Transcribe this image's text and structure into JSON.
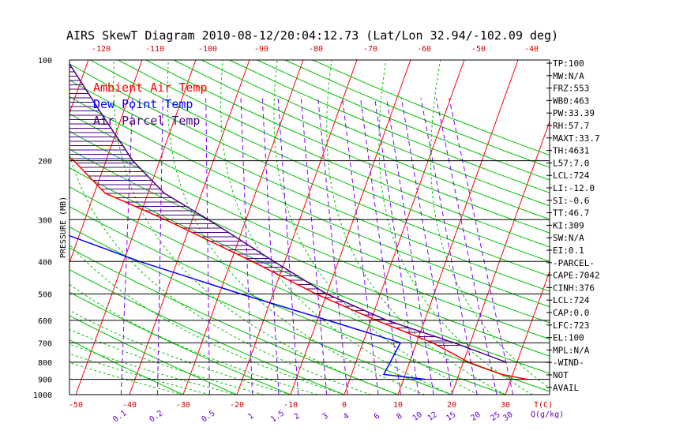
{
  "title": "AIRS SkewT Diagram 2010-08-12/20:04:12.73 (Lat/Lon 32.94/-102.09 deg)",
  "colors": {
    "temperature": "#ff0000",
    "dewpoint": "#0000ff",
    "parcel": "#4b0082",
    "isotherm": "#ff0000",
    "dry_adiabat": "#00c000",
    "moist_adiabat": "#00c000",
    "mixing_ratio": "#8000ff",
    "isobar": "#000000",
    "top_axis_text": "#cc0000",
    "bottom_axis_text": "#cc0000",
    "mixing_text": "#6a00cc"
  },
  "legend": [
    {
      "label": "Ambient Air Temp",
      "color": "#ff0000"
    },
    {
      "label": "Dew Point Temp",
      "color": "#0000ff"
    },
    {
      "label": "Air Parcel Temp",
      "color": "#4b0082"
    }
  ],
  "chart_data": {
    "type": "line",
    "title": "AIRS SkewT Diagram 2010-08-12/20:04:12.73 (Lat/Lon 32.94/-102.09 deg)",
    "ylabel": "PRESSURE (MB)",
    "xlabel": "T(C)",
    "mixing_label": "Q(g/kg)",
    "y_scale": "log",
    "ylim": [
      1000,
      100
    ],
    "pressure_ticks": [
      100,
      200,
      300,
      400,
      500,
      600,
      700,
      800,
      900,
      1000
    ],
    "isobars": [
      200,
      300,
      400,
      500,
      600,
      700,
      800,
      900
    ],
    "top_temps": [
      -120,
      -110,
      -100,
      -90,
      -80,
      -70,
      -60,
      -50,
      -40
    ],
    "bottom_temps": [
      -50,
      -40,
      -30,
      -20,
      -10,
      0,
      10,
      20,
      30
    ],
    "mixing_ratios": [
      "0.1",
      "0.2",
      "0.5",
      "1",
      "1.5",
      "2",
      "3",
      "4",
      "6",
      "8",
      "10",
      "12",
      "15",
      "20",
      "25",
      "30"
    ],
    "mixing_ratio_values": [
      0.1,
      0.2,
      0.5,
      1,
      1.5,
      2,
      3,
      4,
      6,
      8,
      10,
      12,
      15,
      20,
      25,
      30
    ],
    "series": [
      {
        "name": "Ambient Air Temp",
        "pressure": [
          100,
          170,
          200,
          250,
          300,
          400,
          500,
          600,
          700,
          800,
          870,
          900
        ],
        "temp": [
          -75,
          -75,
          -66,
          -58,
          -45,
          -26,
          -12,
          1,
          13,
          21,
          28,
          33
        ]
      },
      {
        "name": "Dew Point Temp",
        "pressure": [
          100,
          200,
          250,
          300,
          400,
          500,
          600,
          700,
          870,
          900
        ],
        "temp": [
          -88,
          -80,
          -80,
          -71,
          -47,
          -26,
          -8,
          7,
          6,
          14
        ]
      },
      {
        "name": "Air Parcel Temp",
        "pressure": [
          100,
          150,
          200,
          250,
          300,
          400,
          500,
          600,
          700,
          800
        ],
        "temp": [
          -74,
          -63,
          -55,
          -47,
          -37,
          -22,
          -10,
          3,
          17,
          28
        ]
      }
    ]
  },
  "indices": [
    "TP:100",
    "MW:N/A",
    "FRZ:553",
    "WB0:463",
    "PW:33.39",
    "RH:57.7",
    "MAXT:33.7",
    "TH:4631",
    "L57:7.0",
    "LCL:724",
    "LI:-12.0",
    "SI:-0.6",
    "TT:46.7",
    "KI:309",
    "SW:N/A",
    "EI:0.1",
    "-PARCEL-",
    "CAPE:7042",
    "CINH:376",
    "LCL:724",
    "CAP:0.0",
    "LFC:723",
    "EL:100",
    "MPL:N/A",
    "-WIND-",
    "NOT",
    "AVAIL"
  ]
}
